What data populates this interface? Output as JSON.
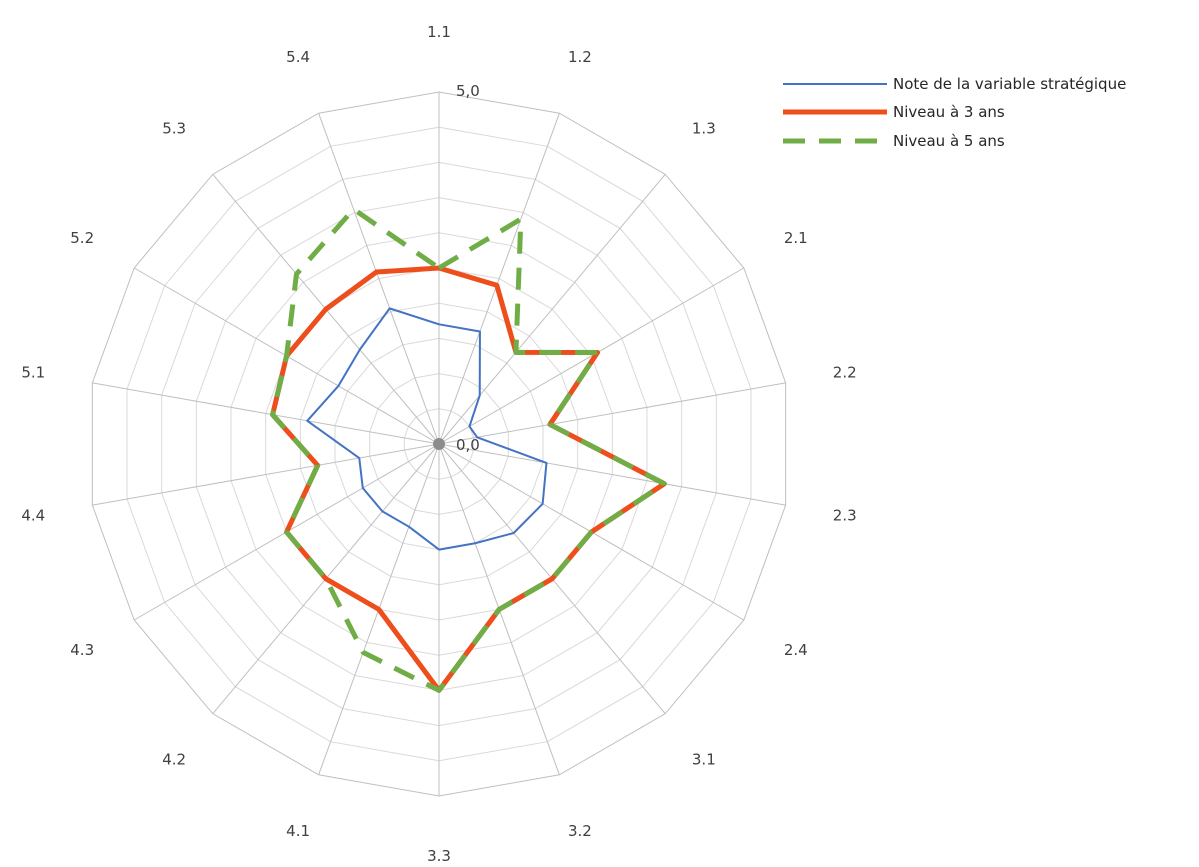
{
  "chart_data": {
    "type": "radar",
    "categories": [
      "1.1",
      "1.2",
      "1.3",
      "2.1",
      "2.2",
      "2.3",
      "2.4",
      "3.1",
      "3.2",
      "3.3",
      "4.1",
      "4.2",
      "4.3",
      "4.4",
      "5.1",
      "5.2",
      "5.3",
      "5.4"
    ],
    "range": [
      0,
      5
    ],
    "scale_labels": {
      "min": "0,0",
      "max": "5,0"
    },
    "grid": true,
    "rings": 5,
    "legend_position": "top-right",
    "series": [
      {
        "name": "Note de la variable stratégique",
        "color": "#4472c4",
        "style": "solid",
        "values": [
          3.4,
          3.4,
          1.8,
          1.0,
          1.1,
          3.1,
          3.4,
          3.3,
          3.0,
          3.0,
          2.5,
          2.5,
          2.5,
          2.3,
          3.8,
          3.3,
          3.5,
          4.1
        ]
      },
      {
        "name": "Niveau à 3 ans",
        "color": "#ed4e1b",
        "style": "solid",
        "values": [
          5.0,
          4.8,
          3.4,
          5.2,
          3.2,
          6.5,
          5.0,
          5.0,
          5.0,
          7.0,
          5.0,
          5.0,
          5.0,
          3.5,
          4.8,
          5.0,
          5.0,
          5.2
        ]
      },
      {
        "name": "Niveau à 5 ans",
        "color": "#70ad47",
        "style": "dashed",
        "values": [
          5.0,
          6.8,
          3.4,
          5.2,
          3.2,
          6.5,
          5.0,
          5.0,
          5.0,
          7.0,
          6.3,
          5.0,
          5.0,
          3.5,
          4.8,
          5.0,
          6.3,
          7.1
        ]
      }
    ]
  }
}
